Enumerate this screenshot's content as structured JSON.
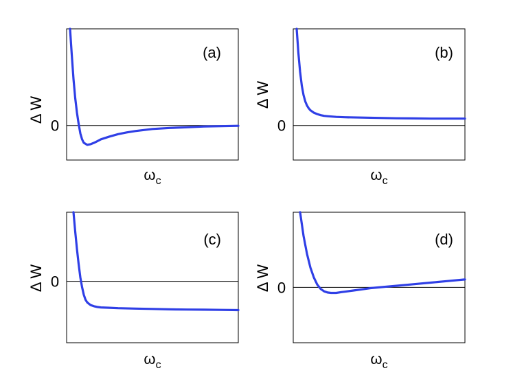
{
  "figure": {
    "line_color": "#2f3fe6",
    "axis_color": "#000000"
  },
  "chart_data": [
    {
      "type": "line",
      "panel": "(a)",
      "xlabel_main": "ω",
      "xlabel_sub": "c",
      "ylabel": "Δ W",
      "y_tick_label": "0",
      "xlim": [
        0,
        10
      ],
      "ylim": [
        -1.0,
        2.8
      ],
      "zero_line": true,
      "x": [
        0.2,
        0.3,
        0.4,
        0.5,
        0.6,
        0.7,
        0.8,
        0.9,
        1.0,
        1.2,
        1.4,
        1.6,
        1.8,
        2.0,
        2.5,
        3.0,
        3.5,
        4.0,
        5.0,
        6.0,
        7.0,
        8.0,
        9.0,
        10.0
      ],
      "y": [
        2.8,
        2.05,
        1.35,
        0.8,
        0.38,
        0.05,
        -0.23,
        -0.4,
        -0.5,
        -0.56,
        -0.54,
        -0.5,
        -0.45,
        -0.4,
        -0.32,
        -0.25,
        -0.2,
        -0.16,
        -0.1,
        -0.07,
        -0.05,
        -0.03,
        -0.02,
        -0.01
      ]
    },
    {
      "type": "line",
      "panel": "(b)",
      "xlabel_main": "ω",
      "xlabel_sub": "c",
      "ylabel": "Δ W",
      "y_tick_label": "0",
      "xlim": [
        0,
        10
      ],
      "ylim": [
        -1.0,
        2.8
      ],
      "zero_line": true,
      "x": [
        0.2,
        0.3,
        0.4,
        0.5,
        0.6,
        0.7,
        0.8,
        0.9,
        1.0,
        1.2,
        1.4,
        1.6,
        1.8,
        2.0,
        2.5,
        3.0,
        4.0,
        5.0,
        6.0,
        7.0,
        8.0,
        9.0,
        10.0
      ],
      "y": [
        2.8,
        2.1,
        1.55,
        1.15,
        0.88,
        0.7,
        0.58,
        0.5,
        0.44,
        0.37,
        0.33,
        0.3,
        0.28,
        0.27,
        0.25,
        0.24,
        0.23,
        0.22,
        0.21,
        0.205,
        0.2,
        0.2,
        0.2
      ]
    },
    {
      "type": "line",
      "panel": "(c)",
      "xlabel_main": "ω",
      "xlabel_sub": "c",
      "ylabel": "Δ W",
      "y_tick_label": "0",
      "xlim": [
        0,
        10
      ],
      "ylim": [
        -1.6,
        1.8
      ],
      "zero_line": true,
      "x": [
        0.4,
        0.5,
        0.6,
        0.7,
        0.8,
        0.9,
        1.0,
        1.1,
        1.2,
        1.4,
        1.6,
        1.8,
        2.0,
        2.5,
        3.0,
        4.0,
        5.0,
        6.0,
        7.0,
        8.0,
        9.0,
        10.0
      ],
      "y": [
        1.8,
        1.3,
        0.85,
        0.45,
        0.1,
        -0.15,
        -0.35,
        -0.48,
        -0.55,
        -0.62,
        -0.65,
        -0.67,
        -0.68,
        -0.69,
        -0.7,
        -0.71,
        -0.72,
        -0.73,
        -0.735,
        -0.74,
        -0.745,
        -0.75
      ]
    },
    {
      "type": "line",
      "panel": "(d)",
      "xlabel_main": "ω",
      "xlabel_sub": "c",
      "ylabel": "Δ W",
      "y_tick_label": "0",
      "xlim": [
        0,
        10
      ],
      "ylim": [
        -1.4,
        1.9
      ],
      "zero_line": true,
      "x": [
        0.4,
        0.6,
        0.8,
        1.0,
        1.2,
        1.4,
        1.6,
        1.8,
        2.0,
        2.2,
        2.5,
        2.8,
        3.0,
        3.5,
        4.0,
        4.5,
        5.0,
        5.5,
        6.0,
        7.0,
        8.0,
        9.0,
        10.0
      ],
      "y": [
        1.9,
        1.3,
        0.85,
        0.5,
        0.25,
        0.07,
        -0.04,
        -0.1,
        -0.13,
        -0.14,
        -0.14,
        -0.12,
        -0.11,
        -0.08,
        -0.05,
        -0.02,
        0.0,
        0.02,
        0.04,
        0.08,
        0.12,
        0.16,
        0.2
      ]
    }
  ]
}
